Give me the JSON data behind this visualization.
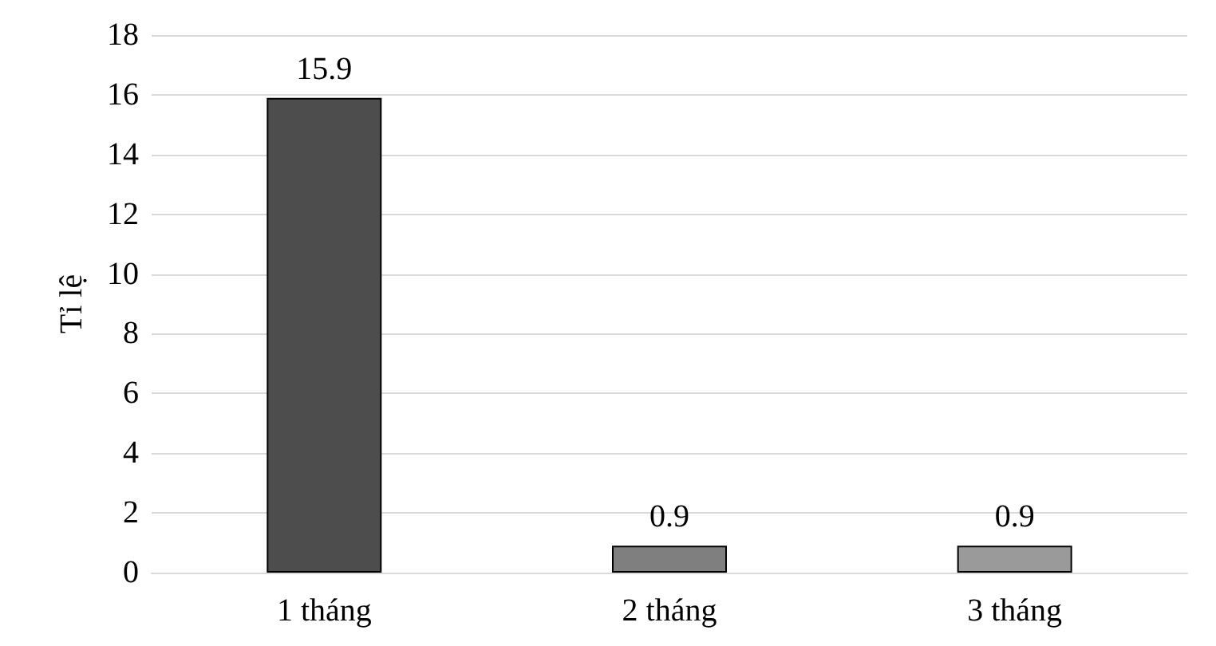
{
  "chart_data": {
    "type": "bar",
    "ylabel": "Tỉ lệ",
    "categories": [
      "1 tháng",
      "2 tháng",
      "3 tháng"
    ],
    "values": [
      15.9,
      0.9,
      0.9
    ],
    "colors": [
      "#4d4d4d",
      "#7f7f7f",
      "#9a9a9a"
    ],
    "ylim": [
      0,
      18
    ],
    "yticks": [
      0,
      2,
      4,
      6,
      8,
      10,
      12,
      14,
      16,
      18
    ],
    "grid": "y",
    "data_labels": true
  }
}
